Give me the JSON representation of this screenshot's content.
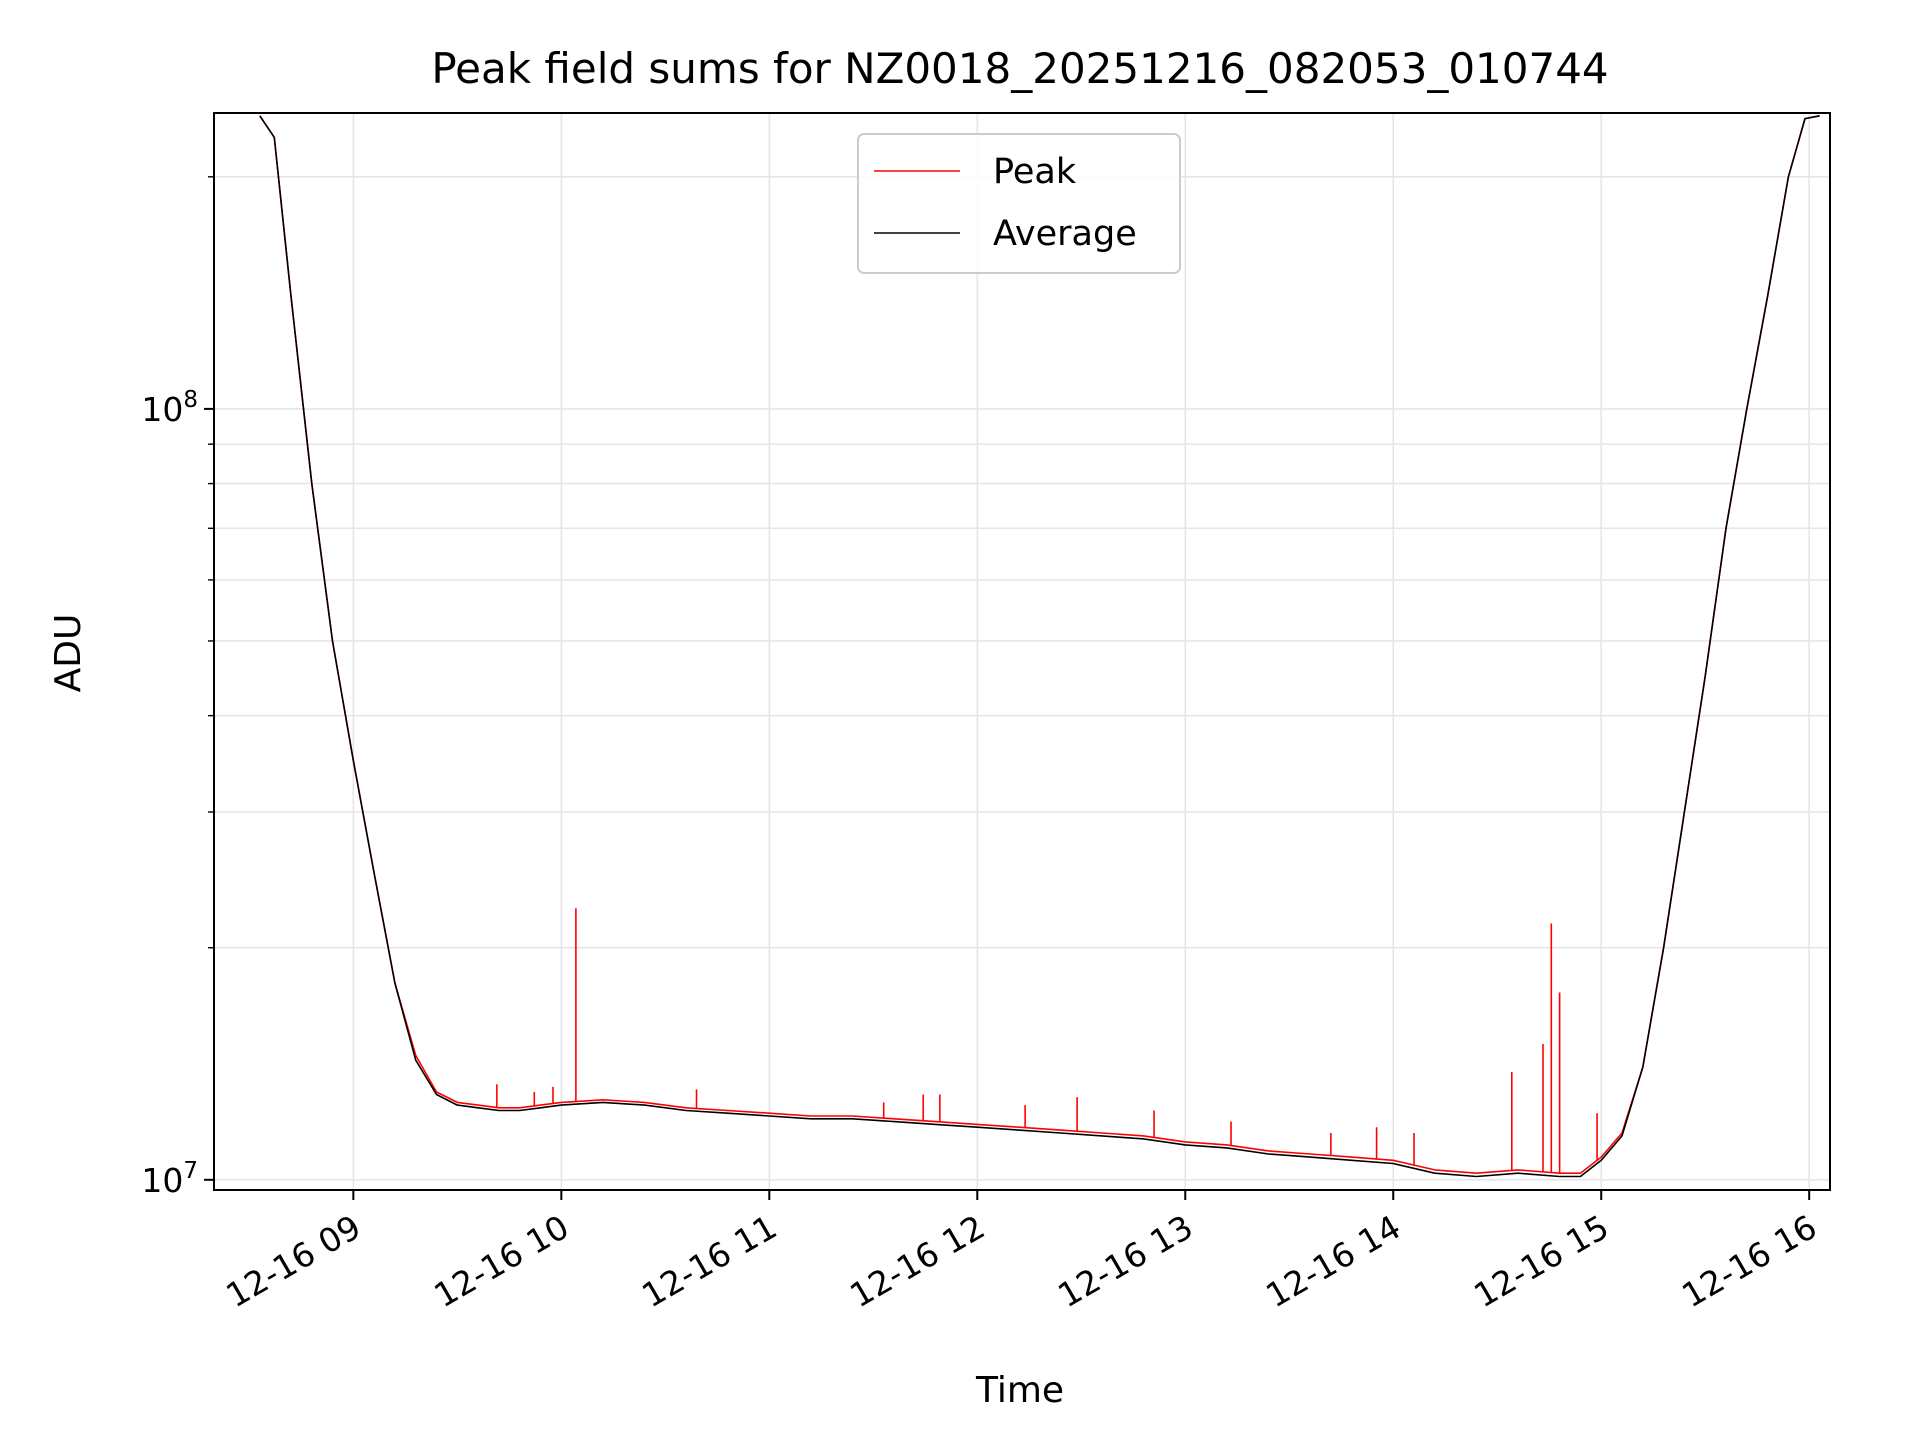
{
  "chart_data": {
    "type": "line",
    "title": "Peak field sums for NZ0018_20251216_082053_010744",
    "xlabel": "Time",
    "ylabel": "ADU",
    "yscale": "log",
    "grid": true,
    "legend_position": "top-center",
    "xlim_hours": [
      8.33,
      16.1
    ],
    "ylim": [
      9700000,
      242000000
    ],
    "x_ticks": [
      {
        "value": 9,
        "label": "12-16 09"
      },
      {
        "value": 10,
        "label": "12-16 10"
      },
      {
        "value": 11,
        "label": "12-16 11"
      },
      {
        "value": 12,
        "label": "12-16 12"
      },
      {
        "value": 13,
        "label": "12-16 13"
      },
      {
        "value": 14,
        "label": "12-16 14"
      },
      {
        "value": 15,
        "label": "12-16 15"
      },
      {
        "value": 16,
        "label": "12-16 16"
      }
    ],
    "y_ticks": [
      {
        "value": 10000000,
        "base": "10",
        "exp": "7"
      },
      {
        "value": 100000000,
        "base": "10",
        "exp": "8"
      }
    ],
    "y_minor_ticks": [
      20000000,
      30000000,
      40000000,
      50000000,
      60000000,
      70000000,
      80000000,
      90000000,
      200000000
    ],
    "series": [
      {
        "name": "Peak",
        "color": "#ff0000",
        "x": [
          8.55,
          8.62,
          8.7,
          8.8,
          8.9,
          9.0,
          9.1,
          9.2,
          9.3,
          9.4,
          9.5,
          9.6,
          9.7,
          9.8,
          9.9,
          10.0,
          10.2,
          10.4,
          10.6,
          10.8,
          11.0,
          11.2,
          11.4,
          11.6,
          11.8,
          12.0,
          12.2,
          12.4,
          12.6,
          12.8,
          13.0,
          13.2,
          13.4,
          13.6,
          13.8,
          14.0,
          14.2,
          14.4,
          14.6,
          14.8,
          14.9,
          15.0,
          15.1,
          15.2,
          15.3,
          15.4,
          15.5,
          15.6,
          15.7,
          15.8,
          15.9,
          15.98,
          16.05
        ],
        "y": [
          240000000,
          225000000,
          140000000,
          80000000,
          50000000,
          35000000,
          25000000,
          18000000,
          14500000,
          13000000,
          12600000,
          12500000,
          12400000,
          12400000,
          12500000,
          12600000,
          12700000,
          12600000,
          12400000,
          12300000,
          12200000,
          12100000,
          12100000,
          12000000,
          11900000,
          11800000,
          11700000,
          11600000,
          11500000,
          11400000,
          11200000,
          11100000,
          10900000,
          10800000,
          10700000,
          10600000,
          10300000,
          10200000,
          10300000,
          10200000,
          10200000,
          10700000,
          11500000,
          14000000,
          20000000,
          30000000,
          45000000,
          70000000,
          100000000,
          140000000,
          200000000,
          238000000,
          240000000
        ],
        "spikes": [
          {
            "x": 9.69,
            "y": 13300000
          },
          {
            "x": 9.87,
            "y": 13000000
          },
          {
            "x": 9.96,
            "y": 13200000
          },
          {
            "x": 10.07,
            "y": 22500000
          },
          {
            "x": 10.65,
            "y": 13100000
          },
          {
            "x": 11.55,
            "y": 12600000
          },
          {
            "x": 11.74,
            "y": 12900000
          },
          {
            "x": 11.82,
            "y": 12900000
          },
          {
            "x": 12.23,
            "y": 12500000
          },
          {
            "x": 12.48,
            "y": 12800000
          },
          {
            "x": 12.85,
            "y": 12300000
          },
          {
            "x": 13.22,
            "y": 11900000
          },
          {
            "x": 13.7,
            "y": 11500000
          },
          {
            "x": 13.92,
            "y": 11700000
          },
          {
            "x": 14.1,
            "y": 11500000
          },
          {
            "x": 14.57,
            "y": 13800000
          },
          {
            "x": 14.72,
            "y": 15000000
          },
          {
            "x": 14.76,
            "y": 21500000
          },
          {
            "x": 14.8,
            "y": 17500000
          },
          {
            "x": 14.98,
            "y": 12200000
          }
        ]
      },
      {
        "name": "Average",
        "color": "#000000",
        "x": [
          8.55,
          8.62,
          8.7,
          8.8,
          8.9,
          9.0,
          9.1,
          9.2,
          9.3,
          9.4,
          9.5,
          9.6,
          9.7,
          9.8,
          9.9,
          10.0,
          10.2,
          10.4,
          10.6,
          10.8,
          11.0,
          11.2,
          11.4,
          11.6,
          11.8,
          12.0,
          12.2,
          12.4,
          12.6,
          12.8,
          13.0,
          13.2,
          13.4,
          13.6,
          13.8,
          14.0,
          14.2,
          14.4,
          14.6,
          14.8,
          14.9,
          15.0,
          15.1,
          15.2,
          15.3,
          15.4,
          15.5,
          15.6,
          15.7,
          15.8,
          15.9,
          15.98,
          16.05
        ],
        "y": [
          240000000,
          225000000,
          140000000,
          80000000,
          50000000,
          35000000,
          25000000,
          18000000,
          14300000,
          12900000,
          12500000,
          12400000,
          12300000,
          12300000,
          12400000,
          12500000,
          12600000,
          12500000,
          12300000,
          12200000,
          12100000,
          12000000,
          12000000,
          11900000,
          11800000,
          11700000,
          11600000,
          11500000,
          11400000,
          11300000,
          11100000,
          11000000,
          10800000,
          10700000,
          10600000,
          10500000,
          10200000,
          10100000,
          10200000,
          10100000,
          10100000,
          10600000,
          11400000,
          14000000,
          20000000,
          30000000,
          45000000,
          70000000,
          100000000,
          140000000,
          200000000,
          238000000,
          240000000
        ]
      }
    ]
  }
}
